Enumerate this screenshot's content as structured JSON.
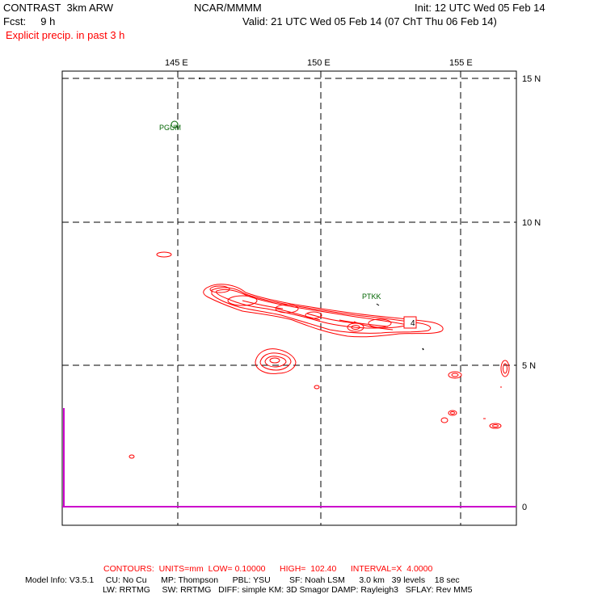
{
  "header": {
    "model": "CONTRAST  3km ARW",
    "org": "NCAR/MMMM",
    "init": "Init: 12 UTC Wed 05 Feb 14",
    "fcst": "Fcst:     9 h",
    "valid": "Valid: 21 UTC Wed 05 Feb 14 (07 ChT Thu 06 Feb 14)",
    "field": "Explicit precip. in past 3 h"
  },
  "map": {
    "lon_labels": [
      "145 E",
      "150 E",
      "155 E"
    ],
    "lat_labels": [
      "15 N",
      "10 N",
      "5 N",
      "0"
    ],
    "stations": [
      "PGUM",
      "PTKK"
    ],
    "contour_label": "4",
    "colors": {
      "contour": "#ff0000",
      "grid": "#000000",
      "equator": "#cc00cc",
      "station": "#006400"
    }
  },
  "footer": {
    "contours": "CONTOURS:  UNITS=mm  LOW= 0.10000      HIGH=  102.40      INTERVAL=X  4.0000",
    "model_info_1": "Model Info: V3.5.1     CU: No Cu      MP: Thompson      PBL: YSU        SF: Noah LSM      3.0 km   39 levels    18 sec",
    "model_info_2": "LW: RRTMG     SW: RRTMG   DIFF: simple KM: 3D Smagor DAMP: Rayleigh3   SFLAY: Rev MM5"
  }
}
